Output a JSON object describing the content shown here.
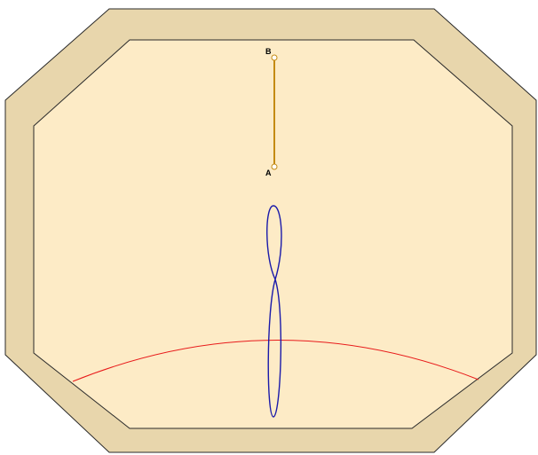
{
  "diagram": {
    "labels": {
      "top_point": "B",
      "bottom_point": "A"
    },
    "colors": {
      "border": "#e8d6ac",
      "face": "#fdebc6",
      "outline": "#2a2a2a",
      "hour_line": "#4a4a55",
      "minor_line": "#8a8890",
      "gnomon": "#c48a12",
      "analemma": "#1a1aaa",
      "date_curve": "#e81a1a"
    }
  }
}
